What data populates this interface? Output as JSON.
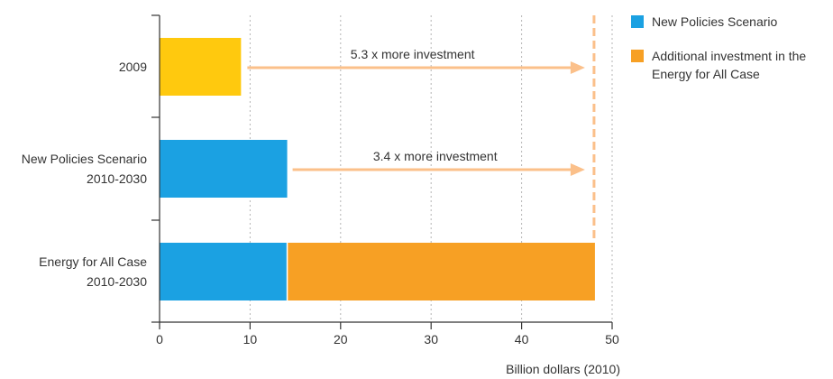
{
  "chart_data": {
    "type": "bar",
    "orientation": "horizontal",
    "stacked": true,
    "categories": [
      [
        "2009"
      ],
      [
        "New Policies Scenario",
        "2010-2030"
      ],
      [
        "Energy for All Case",
        "2010-2030"
      ]
    ],
    "series": [
      {
        "name": "New Policies Scenario",
        "color": "#1ba1e2",
        "values": [
          null,
          14.1,
          14.1
        ]
      },
      {
        "name": "Additional investment in the Energy for All Case",
        "color": "#f7a024",
        "values": [
          null,
          null,
          34.0
        ]
      }
    ],
    "baseline_2009": {
      "value": 9.0,
      "color": "#ffc90e"
    },
    "xlabel": "Billion dollars (2010)",
    "ylabel": "",
    "xlim": [
      0,
      50
    ],
    "xticks": [
      0,
      10,
      20,
      30,
      40,
      50
    ],
    "grid": "vertical-dotted",
    "legend_position": "right",
    "legend": [
      {
        "text": [
          "New Policies Scenario"
        ],
        "color": "#1ba1e2"
      },
      {
        "text": [
          "Additional investment in the",
          "Energy for All Case"
        ],
        "color": "#f7a024"
      }
    ],
    "reference_line": {
      "x": 48.0,
      "color": "#fbc08a"
    },
    "annotations": [
      {
        "text": "5.3 x more investment",
        "category_index": 0,
        "from_x": 9.7,
        "to_x": 47.0,
        "color": "#fbc08a"
      },
      {
        "text": "3.4 x more investment",
        "category_index": 1,
        "from_x": 14.7,
        "to_x": 47.0,
        "color": "#fbc08a"
      }
    ]
  }
}
